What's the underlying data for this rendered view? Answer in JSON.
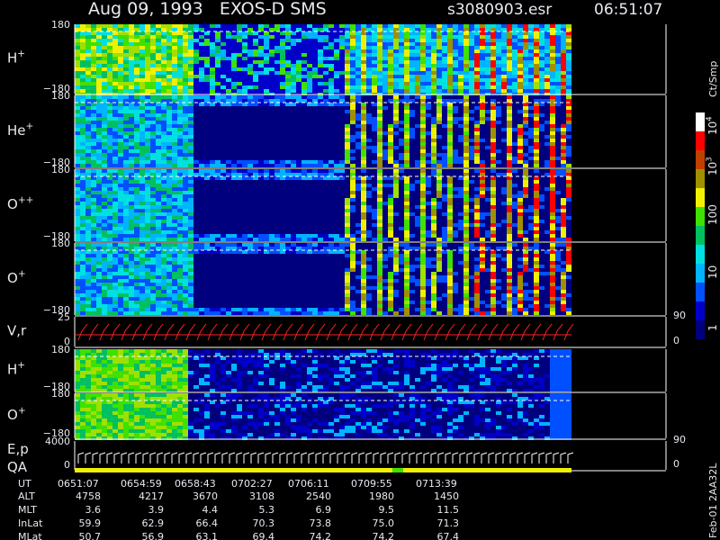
{
  "header": {
    "title": "Aug 09, 1993   EXOS-D SMS",
    "file": "s3080903.esr",
    "time": "06:51:07"
  },
  "panels": [
    {
      "label": {
        "base": "H",
        "sup": "+"
      },
      "top": "180",
      "bottom": "−180"
    },
    {
      "label": {
        "base": "He",
        "sup": "+"
      },
      "top": "180",
      "bottom": "−180"
    },
    {
      "label": {
        "base": "O",
        "sup": "++"
      },
      "top": "180",
      "bottom": "−180"
    },
    {
      "label": {
        "base": "O",
        "sup": "+"
      },
      "top": "180",
      "bottom": "−180"
    },
    {
      "label": {
        "base": "V,r",
        "sup": ""
      },
      "top": "25",
      "bottom": "0",
      "right_top": "90",
      "right_bottom": "0"
    },
    {
      "label": {
        "base": "H",
        "sup": "+"
      },
      "top": "180",
      "bottom": "−180"
    },
    {
      "label": {
        "base": "O",
        "sup": "+"
      },
      "top": "180",
      "bottom": "−180"
    },
    {
      "label": {
        "base": "E,p",
        "sup": ""
      },
      "label2": "QA",
      "top": "4000",
      "bottom": "0",
      "right_top": "90",
      "right_bottom": "0"
    }
  ],
  "colorbar": {
    "unit": "Ct/Smp",
    "labels": [
      {
        "base": "10",
        "sup": "4"
      },
      {
        "base": "10",
        "sup": "3"
      },
      {
        "base": "100",
        "sup": ""
      },
      {
        "base": "10",
        "sup": ""
      },
      {
        "base": "1",
        "sup": ""
      }
    ]
  },
  "footer": {
    "rows": [
      [
        "UT",
        "0651:07",
        "0654:59",
        "0658:43",
        "0702:27",
        "0706:11",
        "0709:55",
        "0713:39"
      ],
      [
        "ALT",
        "4758",
        "4217",
        "3670",
        "3108",
        "2540",
        "1980",
        "1450"
      ],
      [
        "MLT",
        "3.6",
        "3.9",
        "4.4",
        "5.3",
        "6.9",
        "9.5",
        "11.5"
      ],
      [
        "InLat",
        "59.9",
        "62.9",
        "66.4",
        "70.3",
        "73.8",
        "75.0",
        "71.3"
      ],
      [
        "MLat",
        "50.7",
        "56.9",
        "63.1",
        "69.4",
        "74.2",
        "74.2",
        "67.4"
      ]
    ],
    "stamp": "Feb-01 2AA32L"
  }
}
